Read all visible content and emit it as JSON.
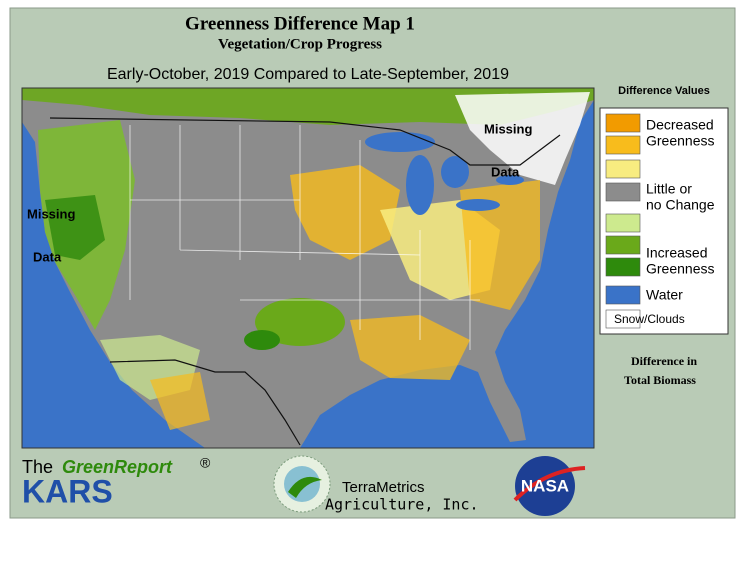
{
  "header": {
    "title": "Greenness Difference Map 1",
    "subtitle": "Vegetation/Crop Progress",
    "period": "Early-October, 2019 Compared to Late-September, 2019"
  },
  "map": {
    "annotations": [
      {
        "line1": "Missing",
        "line2": "Data"
      },
      {
        "line1": "Missing",
        "line2": "Data"
      }
    ]
  },
  "legend": {
    "title": "Difference Values",
    "swatches": [
      "#f29b00",
      "#f8bc1c",
      "#f8ec80",
      "#8c8c8c",
      "#cdea8e",
      "#6aa91a",
      "#2e8a0c",
      "#3a73c8",
      "#ffffff"
    ],
    "labels": [
      "Decreased",
      "Greenness",
      "Little or",
      "no Change",
      "Increased",
      "Greenness",
      "Water",
      "Snow/Clouds"
    ],
    "footer": [
      "Difference in",
      "Total Biomass"
    ]
  },
  "logos": {
    "greenreport": {
      "prefix": "The",
      "name": "GreenReport",
      "mark": "®",
      "org": "KARS"
    },
    "terrametrics": {
      "line1": "TerraMetrics",
      "line2": "Agriculture, Inc."
    },
    "nasa": "NASA"
  }
}
